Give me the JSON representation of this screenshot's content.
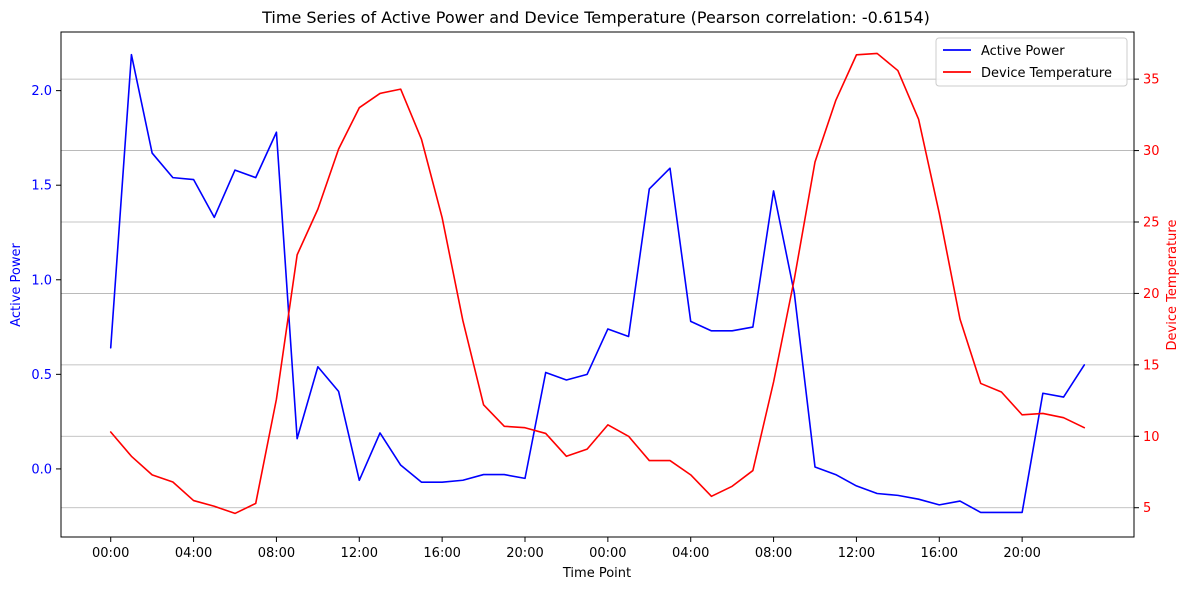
{
  "chart_data": {
    "type": "line",
    "title": "Time Series of Active Power and Device Temperature (Pearson correlation: -0.6154)",
    "xlabel": "Time Point",
    "ylabel_left": "Active Power",
    "ylabel_right": "Device Temperature",
    "x_tick_labels": [
      "00:00",
      "04:00",
      "08:00",
      "12:00",
      "16:00",
      "20:00",
      "00:00",
      "04:00",
      "08:00",
      "12:00",
      "16:00",
      "20:00"
    ],
    "x_tick_positions": [
      0,
      4,
      8,
      12,
      16,
      20,
      24,
      28,
      32,
      36,
      40,
      44
    ],
    "x_range": [
      -2.4,
      49.4
    ],
    "ylim_left": [
      -0.36,
      2.31
    ],
    "ylim_right": [
      2.95,
      38.3
    ],
    "yticks_left": [
      0.0,
      0.5,
      1.0,
      1.5,
      2.0
    ],
    "yticks_left_labels": [
      "0.0",
      "0.5",
      "1.0",
      "1.5",
      "2.0"
    ],
    "yticks_right": [
      5,
      10,
      15,
      20,
      25,
      30,
      35
    ],
    "yticks_right_labels": [
      "5",
      "10",
      "15",
      "20",
      "25",
      "30",
      "35"
    ],
    "grid": "horizontal (right axis)",
    "legend_position": "top-right",
    "x": [
      0,
      1,
      2,
      3,
      4,
      5,
      6,
      7,
      8,
      9,
      10,
      11,
      12,
      13,
      14,
      15,
      16,
      17,
      18,
      19,
      20,
      21,
      22,
      23,
      24,
      25,
      26,
      27,
      28,
      29,
      30,
      31,
      32,
      33,
      34,
      35,
      36,
      37,
      38,
      39,
      40,
      41,
      42,
      43,
      44,
      45,
      46,
      47
    ],
    "series": [
      {
        "name": "Active Power",
        "axis": "left",
        "color": "#0000ff",
        "values": [
          0.64,
          2.19,
          1.67,
          1.54,
          1.53,
          1.33,
          1.58,
          1.54,
          1.78,
          0.16,
          0.54,
          0.41,
          -0.06,
          0.19,
          0.02,
          -0.07,
          -0.07,
          -0.06,
          -0.03,
          -0.03,
          -0.05,
          0.51,
          0.47,
          0.5,
          0.74,
          0.7,
          1.48,
          1.59,
          0.78,
          0.73,
          0.73,
          0.75,
          1.47,
          0.93,
          0.01,
          -0.03,
          -0.09,
          -0.13,
          -0.14,
          -0.16,
          -0.19,
          -0.17,
          -0.23,
          -0.23,
          -0.23,
          0.4,
          0.38,
          0.55
        ]
      },
      {
        "name": "Device Temperature",
        "axis": "right",
        "color": "#ff0000",
        "values": [
          10.3,
          8.6,
          7.3,
          6.8,
          5.5,
          5.1,
          4.6,
          5.3,
          12.6,
          22.7,
          25.9,
          30.1,
          33.0,
          34.0,
          34.3,
          30.8,
          25.3,
          18.1,
          12.2,
          10.7,
          10.6,
          10.2,
          8.6,
          9.1,
          10.8,
          10.0,
          8.3,
          8.3,
          7.3,
          5.8,
          6.5,
          7.6,
          13.8,
          21.0,
          29.2,
          33.5,
          36.7,
          36.8,
          35.6,
          32.2,
          25.6,
          18.2,
          13.7,
          13.1,
          11.5,
          11.6,
          11.3,
          10.6
        ]
      }
    ]
  },
  "legend": {
    "items": [
      {
        "label": "Active Power",
        "color": "#0000ff"
      },
      {
        "label": "Device Temperature",
        "color": "#ff0000"
      }
    ]
  }
}
